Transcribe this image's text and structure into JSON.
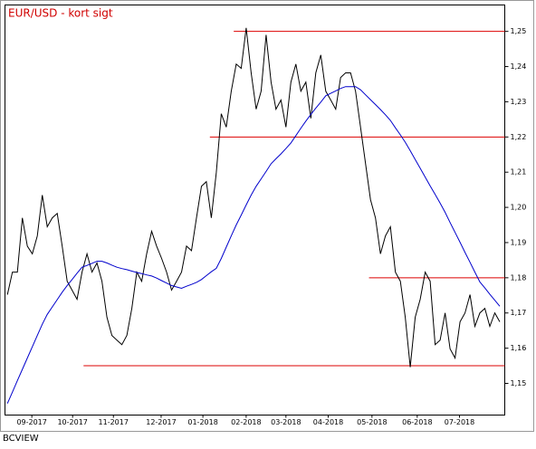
{
  "chart_data": {
    "type": "line",
    "title": "EUR/USD - kort sigt",
    "source": "BCVIEW",
    "xlim": [
      -0.5,
      100
    ],
    "xticks": [
      {
        "value": 4.9,
        "label": "09-2017"
      },
      {
        "value": 13.1,
        "label": "10-2017"
      },
      {
        "value": 21.3,
        "label": "11-2017"
      },
      {
        "value": 30.9,
        "label": "12-2017"
      },
      {
        "value": 39.3,
        "label": "01-2018"
      },
      {
        "value": 48,
        "label": "02-2018"
      },
      {
        "value": 56,
        "label": "03-2018"
      },
      {
        "value": 64.5,
        "label": "04-2018"
      },
      {
        "value": 73.3,
        "label": "05-2018"
      },
      {
        "value": 82.4,
        "label": "06-2018"
      },
      {
        "value": 90.9,
        "label": "07-2018"
      }
    ],
    "ylim": [
      1.141,
      1.2575
    ],
    "yticks": [
      {
        "value": 1.15,
        "label": "1,15"
      },
      {
        "value": 1.16,
        "label": "1,16"
      },
      {
        "value": 1.17,
        "label": "1,17"
      },
      {
        "value": 1.18,
        "label": "1,18"
      },
      {
        "value": 1.19,
        "label": "1,19"
      },
      {
        "value": 1.2,
        "label": "1,20"
      },
      {
        "value": 1.21,
        "label": "1,21"
      },
      {
        "value": 1.22,
        "label": "1,22"
      },
      {
        "value": 1.23,
        "label": "1,23"
      },
      {
        "value": 1.24,
        "label": "1,24"
      },
      {
        "value": 1.25,
        "label": "1,25"
      }
    ],
    "series": [
      {
        "color": "#000000",
        "values": [
          1.1752,
          1.1816,
          1.1816,
          1.197,
          1.189,
          1.1868,
          1.1919,
          1.2035,
          1.1945,
          1.197,
          1.1983,
          1.189,
          1.179,
          1.1765,
          1.1739,
          1.1816,
          1.1868,
          1.1816,
          1.1842,
          1.179,
          1.1688,
          1.1636,
          1.1623,
          1.161,
          1.1636,
          1.1713,
          1.1816,
          1.179,
          1.1868,
          1.1932,
          1.189,
          1.1855,
          1.1816,
          1.1765,
          1.179,
          1.1816,
          1.189,
          1.1877,
          1.197,
          1.206,
          1.2073,
          1.197,
          1.2099,
          1.2266,
          1.2228,
          1.233,
          1.2407,
          1.2395,
          1.251,
          1.2382,
          1.2279,
          1.233,
          1.249,
          1.2356,
          1.2279,
          1.2305,
          1.2228,
          1.2356,
          1.2407,
          1.233,
          1.2356,
          1.2253,
          1.2382,
          1.2433,
          1.233,
          1.2305,
          1.2279,
          1.2369,
          1.2382,
          1.2382,
          1.233,
          1.2228,
          1.2125,
          1.2022,
          1.197,
          1.1868,
          1.1919,
          1.1945,
          1.1816,
          1.179,
          1.1688,
          1.1546,
          1.1688,
          1.1739,
          1.1816,
          1.179,
          1.161,
          1.1623,
          1.17,
          1.1598,
          1.1572,
          1.1675,
          1.17,
          1.1752,
          1.1662,
          1.17,
          1.1713,
          1.1662,
          1.17,
          1.1675
        ]
      },
      {
        "color": "#0000cc",
        "values": [
          1.1443,
          1.1475,
          1.1508,
          1.154,
          1.1572,
          1.1604,
          1.1636,
          1.1668,
          1.1696,
          1.1717,
          1.1738,
          1.1759,
          1.1778,
          1.1795,
          1.1813,
          1.183,
          1.1835,
          1.1841,
          1.1847,
          1.1847,
          1.1842,
          1.1836,
          1.183,
          1.1826,
          1.1823,
          1.1819,
          1.1815,
          1.1812,
          1.1808,
          1.1805,
          1.1799,
          1.1792,
          1.1785,
          1.1778,
          1.1774,
          1.177,
          1.1776,
          1.1781,
          1.1787,
          1.1795,
          1.1806,
          1.1817,
          1.1827,
          1.1855,
          1.1887,
          1.1919,
          1.195,
          1.1978,
          1.2007,
          1.2035,
          1.206,
          1.2081,
          1.2102,
          1.2124,
          1.2138,
          1.2152,
          1.2167,
          1.2183,
          1.2204,
          1.2225,
          1.2245,
          1.2264,
          1.2282,
          1.2299,
          1.2317,
          1.2324,
          1.2331,
          1.2338,
          1.2343,
          1.2343,
          1.2343,
          1.2334,
          1.232,
          1.2306,
          1.2292,
          1.2278,
          1.2263,
          1.2247,
          1.2226,
          1.2206,
          1.2185,
          1.2161,
          1.2136,
          1.2111,
          1.2086,
          1.2061,
          1.2037,
          1.2012,
          1.1986,
          1.1957,
          1.1929,
          1.1901,
          1.1872,
          1.1844,
          1.1816,
          1.1788,
          1.1771,
          1.1753,
          1.1736,
          1.1719
        ]
      }
    ],
    "levels": [
      {
        "value": 1.25,
        "from": 45.5
      },
      {
        "value": 1.22,
        "from": 40.7
      },
      {
        "value": 1.18,
        "from": 72.7
      },
      {
        "value": 1.155,
        "from": 15.3
      }
    ],
    "level_color": "#dd0000"
  }
}
